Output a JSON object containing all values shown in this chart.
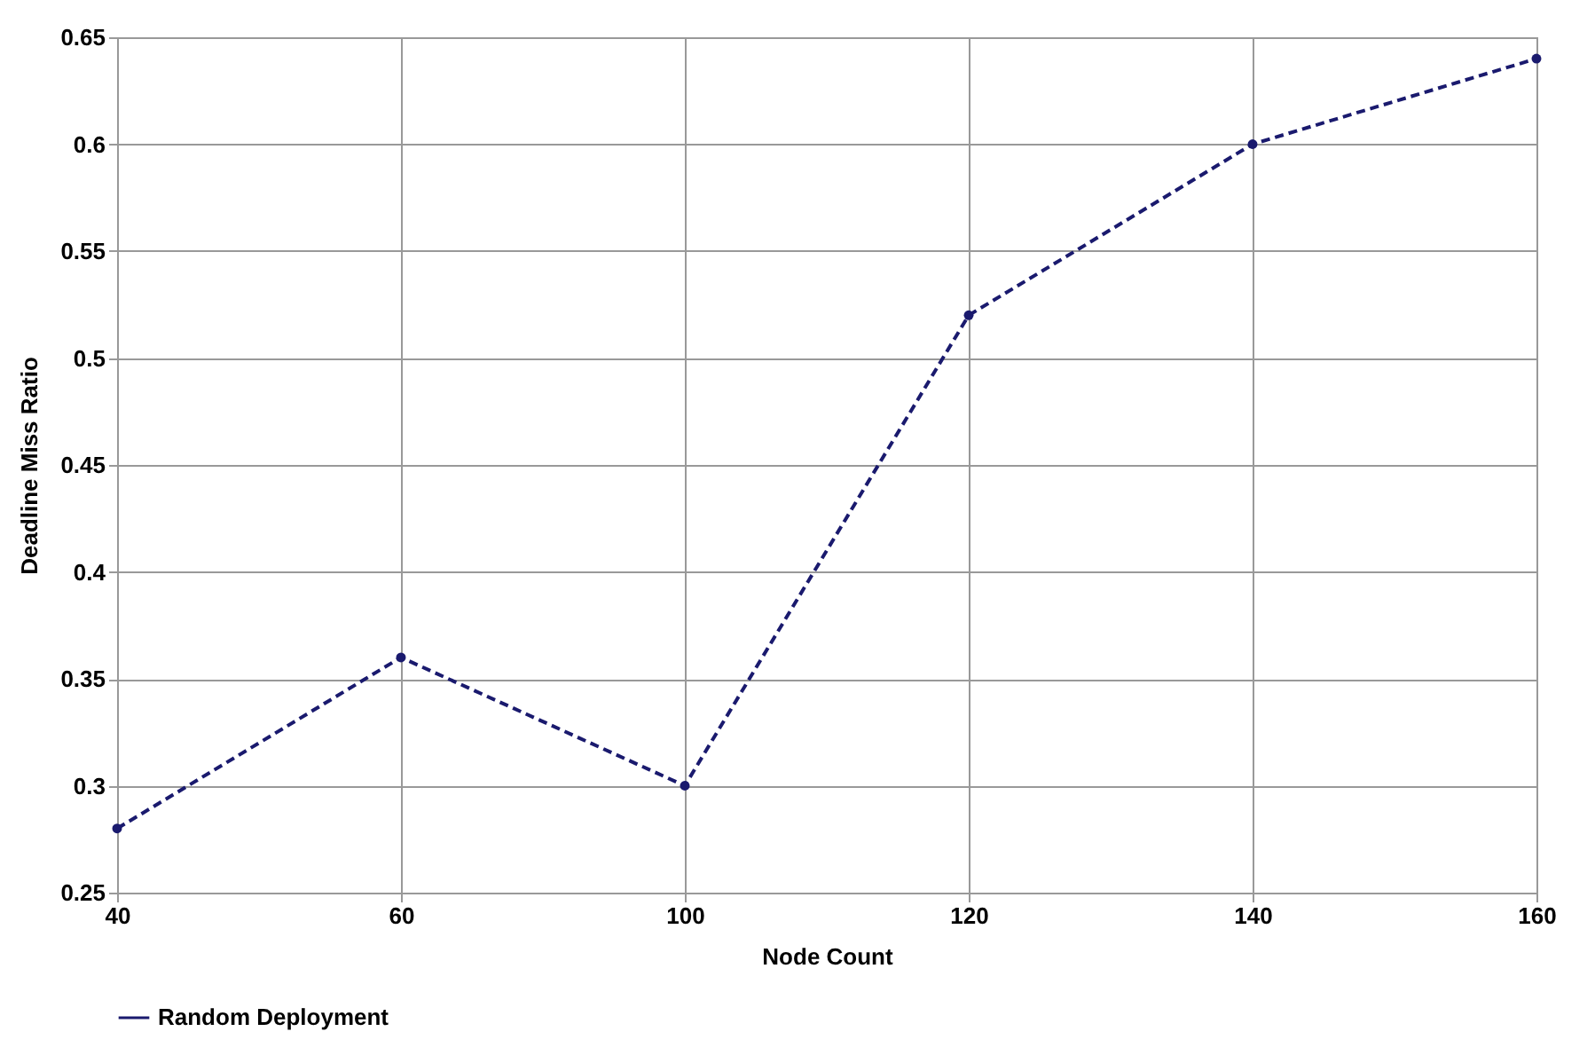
{
  "chart_data": {
    "type": "line",
    "xlabel": "Node Count",
    "ylabel": "Deadline Miss Ratio",
    "categories": [
      "40",
      "60",
      "100",
      "120",
      "140",
      "160"
    ],
    "series": [
      {
        "name": "Random Deployment",
        "color": "#1a1a6e",
        "values": [
          0.28,
          0.36,
          0.3,
          0.52,
          0.6,
          0.64
        ]
      }
    ],
    "ylim": [
      0.25,
      0.65
    ],
    "yticks": [
      0.25,
      0.3,
      0.35,
      0.4,
      0.45,
      0.5,
      0.55,
      0.6,
      0.65
    ],
    "grid": true,
    "legend": "bottom",
    "marker": "circle",
    "line_style": "dashed"
  }
}
